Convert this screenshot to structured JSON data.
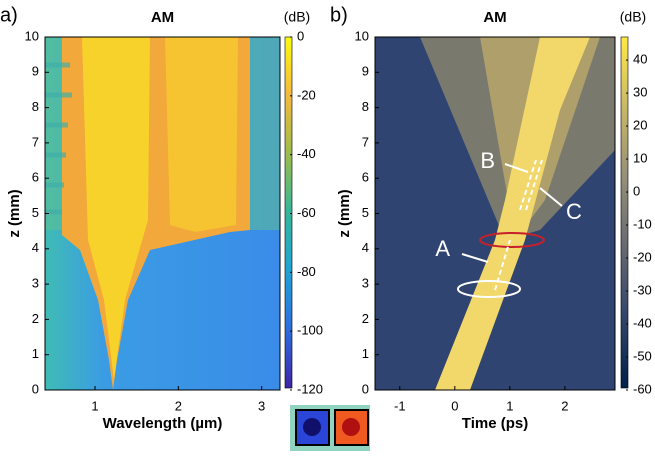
{
  "chart_data": [
    {
      "type": "heatmap",
      "panel_label": "a)",
      "title": "AM",
      "xlabel": "Wavelength (µm)",
      "ylabel": "z (mm)",
      "xlim": [
        0.4,
        3.22
      ],
      "xticks": [
        1,
        2,
        3
      ],
      "ylim": [
        0,
        10
      ],
      "yticks": [
        0,
        1,
        2,
        3,
        4,
        5,
        6,
        7,
        8,
        9,
        10
      ],
      "colorbar_label": "(dB)",
      "clim": [
        -120,
        0
      ],
      "cticks": [
        0,
        -20,
        -40,
        -60,
        -80,
        -100,
        -120
      ],
      "colormap": [
        "#3e26a8",
        "#2c6de0",
        "#1fa3d5",
        "#33b79a",
        "#9cbd4a",
        "#f5b93a",
        "#f9fb0e"
      ]
    },
    {
      "type": "heatmap",
      "panel_label": "b)",
      "title": "AM",
      "xlabel": "Time (ps)",
      "ylabel": "z (mm)",
      "xlim": [
        -1.45,
        2.91
      ],
      "xticks": [
        -1,
        0,
        1,
        2
      ],
      "ylim": [
        0,
        10
      ],
      "yticks": [
        0,
        1,
        2,
        3,
        4,
        5,
        6,
        7,
        8,
        9,
        10
      ],
      "colorbar_label": "(dB)",
      "clim": [
        -60,
        47
      ],
      "cticks": [
        40,
        30,
        20,
        10,
        0,
        -10,
        -20,
        -30,
        -40,
        -50,
        -60
      ],
      "colormap": [
        "#00204c",
        "#31446b",
        "#666970",
        "#958f78",
        "#c8b866",
        "#ffe945"
      ],
      "annotations": [
        "A",
        "B",
        "C"
      ]
    }
  ]
}
